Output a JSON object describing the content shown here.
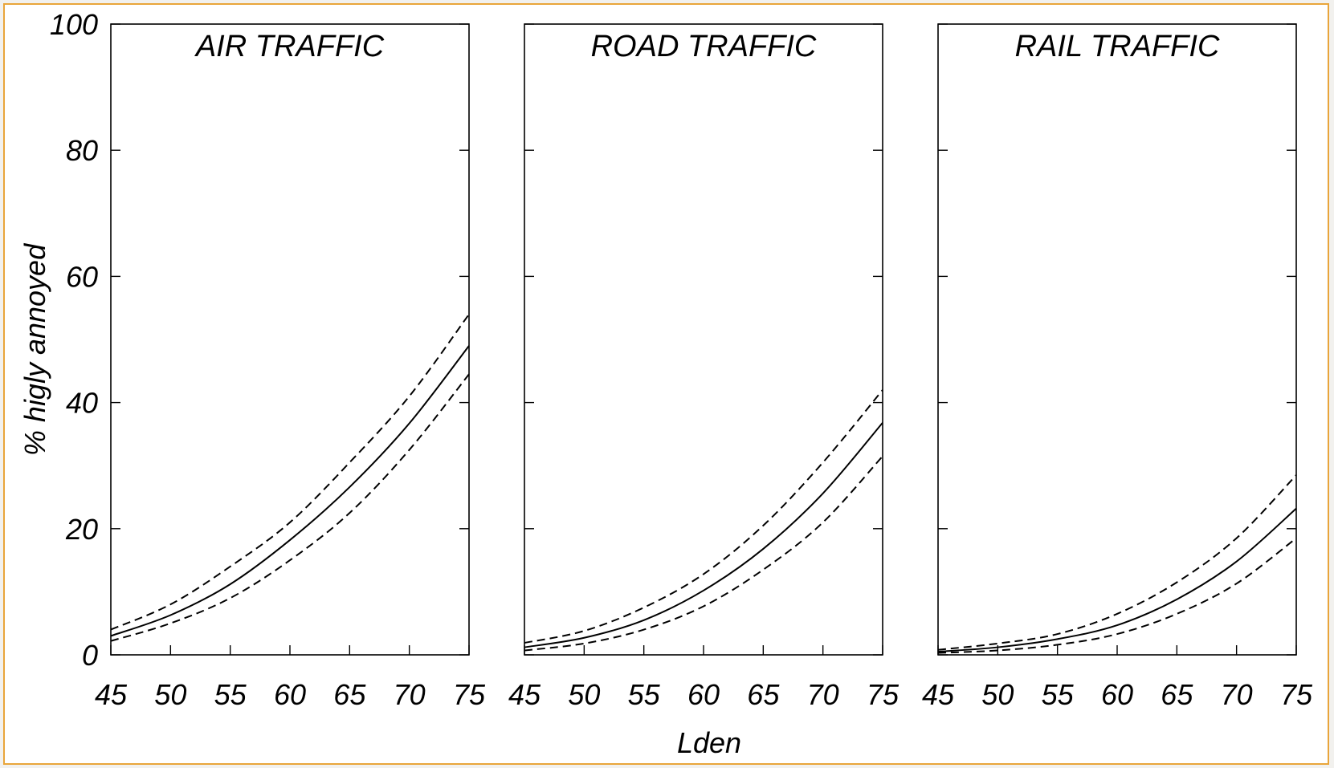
{
  "colors": {
    "frame_border": "#e9a53a",
    "line": "#000000",
    "background": "#ffffff"
  },
  "chart_data": {
    "type": "line",
    "ylabel": "% higly annoyed",
    "xlabel": "Lden",
    "xlim": [
      45,
      75
    ],
    "ylim": [
      0,
      100
    ],
    "xticks": [
      45,
      50,
      55,
      60,
      65,
      70,
      75
    ],
    "yticks": [
      0,
      20,
      40,
      60,
      80,
      100
    ],
    "grid": false,
    "line_styles": {
      "estimate": "solid",
      "upper_bound": "dashed",
      "lower_bound": "dashed"
    },
    "panels": [
      {
        "title": "AIR TRAFFIC",
        "x": [
          45,
          50,
          55,
          60,
          65,
          70,
          75
        ],
        "series": [
          {
            "role": "estimate",
            "values": [
              3.0,
              6.3,
              11.2,
              18.2,
              26.6,
              36.7,
              49.0
            ]
          },
          {
            "role": "upper_bound",
            "values": [
              4.0,
              8.0,
              14.0,
              21.0,
              30.5,
              41.0,
              54.0
            ]
          },
          {
            "role": "lower_bound",
            "values": [
              2.2,
              5.0,
              9.0,
              15.0,
              22.5,
              32.5,
              44.5
            ]
          }
        ]
      },
      {
        "title": "ROAD TRAFFIC",
        "x": [
          45,
          50,
          55,
          60,
          65,
          70,
          75
        ],
        "series": [
          {
            "role": "estimate",
            "values": [
              1.2,
              2.7,
              5.5,
              10.2,
              16.8,
              25.6,
              36.8
            ]
          },
          {
            "role": "upper_bound",
            "values": [
              1.9,
              3.8,
              7.5,
              12.8,
              20.5,
              30.5,
              42.0
            ]
          },
          {
            "role": "lower_bound",
            "values": [
              0.7,
              1.8,
              4.0,
              7.7,
              13.5,
              21.0,
              31.5
            ]
          }
        ]
      },
      {
        "title": "RAIL TRAFFIC",
        "x": [
          45,
          50,
          55,
          60,
          65,
          70,
          75
        ],
        "series": [
          {
            "role": "estimate",
            "values": [
              0.5,
              1.2,
              2.5,
              4.7,
              8.8,
              14.8,
              23.2
            ]
          },
          {
            "role": "upper_bound",
            "values": [
              0.8,
              1.8,
              3.3,
              6.5,
              11.5,
              18.5,
              28.5
            ]
          },
          {
            "role": "lower_bound",
            "values": [
              0.3,
              0.7,
              1.6,
              3.3,
              6.5,
              11.3,
              18.5
            ]
          }
        ]
      }
    ]
  }
}
